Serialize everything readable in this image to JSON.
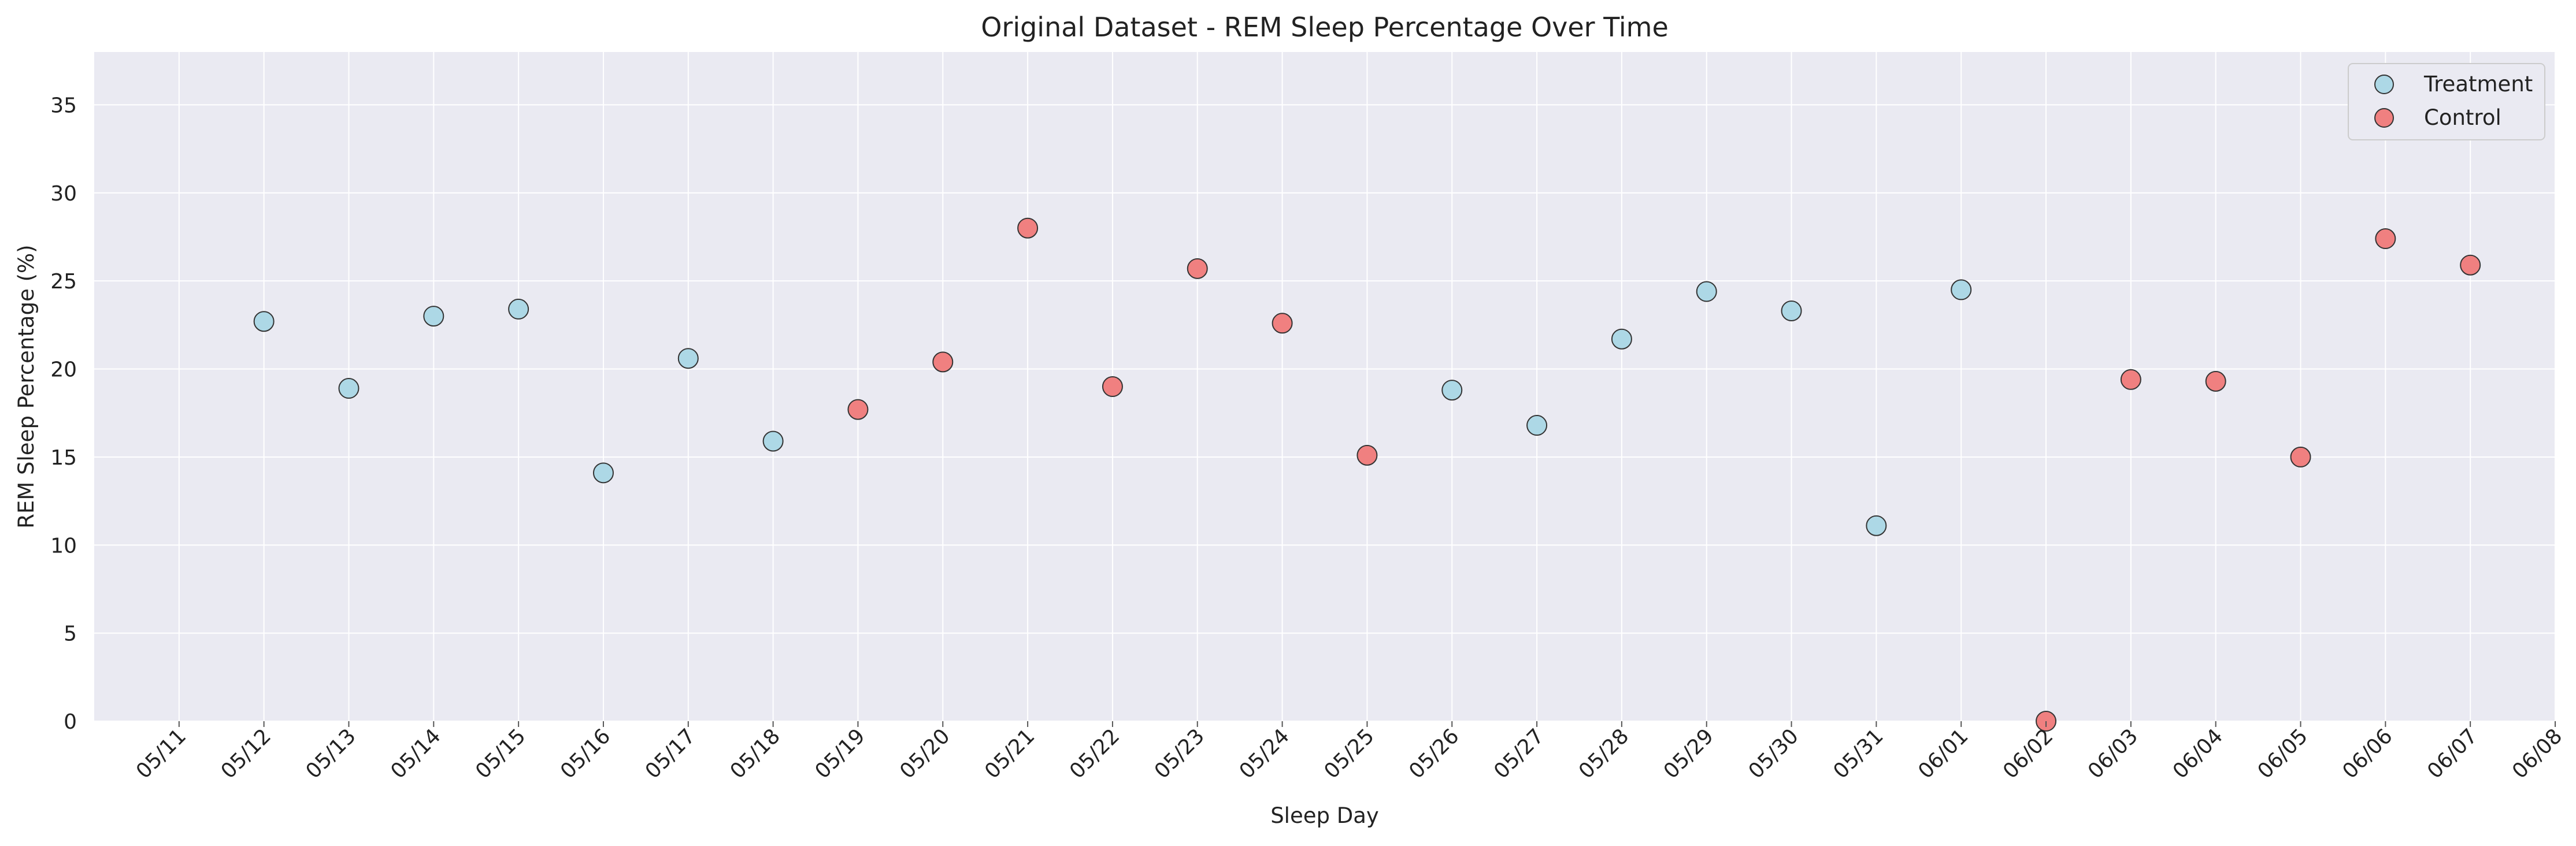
{
  "chart_data": {
    "type": "scatter",
    "title": "Original Dataset - REM Sleep Percentage Over Time",
    "xlabel": "Sleep Day",
    "ylabel": "REM Sleep Percentage (%)",
    "x_tick_labels": [
      "05/11",
      "05/12",
      "05/13",
      "05/14",
      "05/15",
      "05/16",
      "05/17",
      "05/18",
      "05/19",
      "05/20",
      "05/21",
      "05/22",
      "05/23",
      "05/24",
      "05/25",
      "05/26",
      "05/27",
      "05/28",
      "05/29",
      "05/30",
      "05/31",
      "06/01",
      "06/02",
      "06/03",
      "06/04",
      "06/05",
      "06/06",
      "06/07",
      "06/08"
    ],
    "xlim": [
      "05/10",
      "06/08"
    ],
    "y_ticks": [
      0,
      5,
      10,
      15,
      20,
      25,
      30,
      35
    ],
    "ylim": [
      0,
      38
    ],
    "grid": true,
    "legend_position": "top-right",
    "series": [
      {
        "name": "Treatment",
        "color": "#add8e6",
        "points": [
          {
            "x": "05/12",
            "y": 22.7
          },
          {
            "x": "05/13",
            "y": 18.9
          },
          {
            "x": "05/14",
            "y": 23.0
          },
          {
            "x": "05/15",
            "y": 23.4
          },
          {
            "x": "05/16",
            "y": 14.1
          },
          {
            "x": "05/17",
            "y": 20.6
          },
          {
            "x": "05/18",
            "y": 15.9
          },
          {
            "x": "05/26",
            "y": 18.8
          },
          {
            "x": "05/27",
            "y": 16.8
          },
          {
            "x": "05/28",
            "y": 21.7
          },
          {
            "x": "05/29",
            "y": 24.4
          },
          {
            "x": "05/30",
            "y": 23.3
          },
          {
            "x": "05/31",
            "y": 11.1
          },
          {
            "x": "06/01",
            "y": 24.5
          }
        ]
      },
      {
        "name": "Control",
        "color": "#f08080",
        "points": [
          {
            "x": "05/19",
            "y": 17.7
          },
          {
            "x": "05/20",
            "y": 20.4
          },
          {
            "x": "05/21",
            "y": 28.0
          },
          {
            "x": "05/22",
            "y": 19.0
          },
          {
            "x": "05/23",
            "y": 25.7
          },
          {
            "x": "05/24",
            "y": 22.6
          },
          {
            "x": "05/25",
            "y": 15.1
          },
          {
            "x": "06/02",
            "y": 0.0
          },
          {
            "x": "06/03",
            "y": 19.4
          },
          {
            "x": "06/04",
            "y": 19.3
          },
          {
            "x": "06/05",
            "y": 15.0
          },
          {
            "x": "06/06",
            "y": 27.4
          },
          {
            "x": "06/07",
            "y": 25.9
          }
        ]
      }
    ]
  }
}
